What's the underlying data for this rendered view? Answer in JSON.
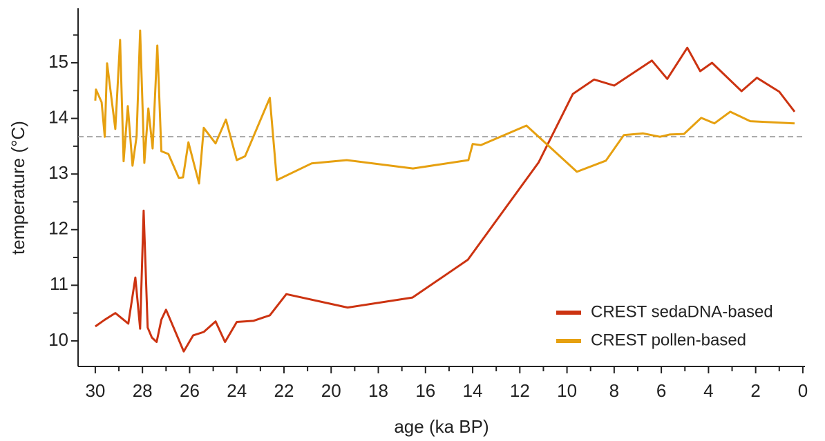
{
  "chart_data": {
    "type": "line",
    "xlabel": "age (ka BP)",
    "ylabel": "temperature (°C)",
    "xlim": [
      30.73,
      -0.09
    ],
    "ylim": [
      9.54,
      15.98
    ],
    "xticks": [
      30,
      28,
      26,
      24,
      22,
      20,
      18,
      16,
      14,
      12,
      10,
      8,
      6,
      4,
      2,
      0
    ],
    "xticks_minor": [
      29,
      27,
      25,
      23,
      21,
      19,
      17,
      15,
      13,
      11,
      9,
      7,
      5,
      3,
      1
    ],
    "yticks": [
      10,
      11,
      12,
      13,
      14,
      15
    ],
    "yticks_minor": [
      10.5,
      11.5,
      12.5,
      13.5,
      14.5,
      15.5
    ],
    "reference_line": 13.67,
    "legend_position": "lower right",
    "series": [
      {
        "name": "CREST sedaDNA-based",
        "color": "#cc3311",
        "x": [
          30.0,
          29.6,
          29.15,
          28.6,
          28.3,
          28.1,
          27.95,
          27.78,
          27.6,
          27.4,
          27.2,
          27.0,
          26.25,
          25.85,
          25.4,
          24.9,
          24.5,
          24.0,
          23.3,
          22.6,
          21.9,
          19.3,
          16.55,
          14.2,
          11.2,
          9.75,
          8.85,
          8.0,
          6.4,
          5.75,
          4.9,
          4.35,
          3.85,
          2.6,
          1.95,
          1.0,
          0.35
        ],
        "values": [
          10.26,
          10.38,
          10.5,
          10.31,
          11.14,
          10.22,
          12.34,
          10.24,
          10.06,
          9.98,
          10.38,
          10.56,
          9.81,
          10.1,
          10.16,
          10.35,
          9.98,
          10.34,
          10.36,
          10.46,
          10.84,
          10.6,
          10.78,
          11.46,
          13.21,
          14.44,
          14.7,
          14.59,
          15.04,
          14.71,
          15.27,
          14.85,
          15.0,
          14.49,
          14.73,
          14.48,
          14.12
        ]
      },
      {
        "name": "CREST pollen-based",
        "color": "#e6a010",
        "x": [
          30.0,
          29.97,
          29.73,
          29.6,
          29.5,
          29.15,
          28.95,
          28.8,
          28.62,
          28.42,
          28.25,
          28.1,
          27.92,
          27.75,
          27.57,
          27.37,
          27.2,
          26.9,
          26.46,
          26.28,
          26.05,
          25.6,
          25.4,
          24.9,
          24.46,
          24.0,
          23.65,
          22.6,
          22.3,
          20.83,
          19.34,
          16.53,
          14.18,
          14.0,
          13.65,
          11.72,
          9.58,
          8.35,
          7.59,
          6.77,
          6.06,
          5.65,
          5.04,
          4.31,
          3.75,
          3.08,
          2.23,
          0.35
        ],
        "values": [
          14.32,
          14.52,
          14.29,
          13.67,
          14.99,
          13.81,
          15.41,
          13.23,
          14.22,
          13.15,
          13.68,
          15.58,
          13.2,
          14.18,
          13.46,
          15.31,
          13.41,
          13.36,
          12.93,
          12.94,
          13.57,
          12.83,
          13.83,
          13.55,
          13.98,
          13.25,
          13.32,
          14.37,
          12.89,
          13.19,
          13.25,
          13.1,
          13.25,
          13.54,
          13.52,
          13.87,
          13.04,
          13.24,
          13.7,
          13.73,
          13.67,
          13.71,
          13.72,
          14.01,
          13.91,
          14.12,
          13.95,
          13.91
        ]
      }
    ]
  }
}
